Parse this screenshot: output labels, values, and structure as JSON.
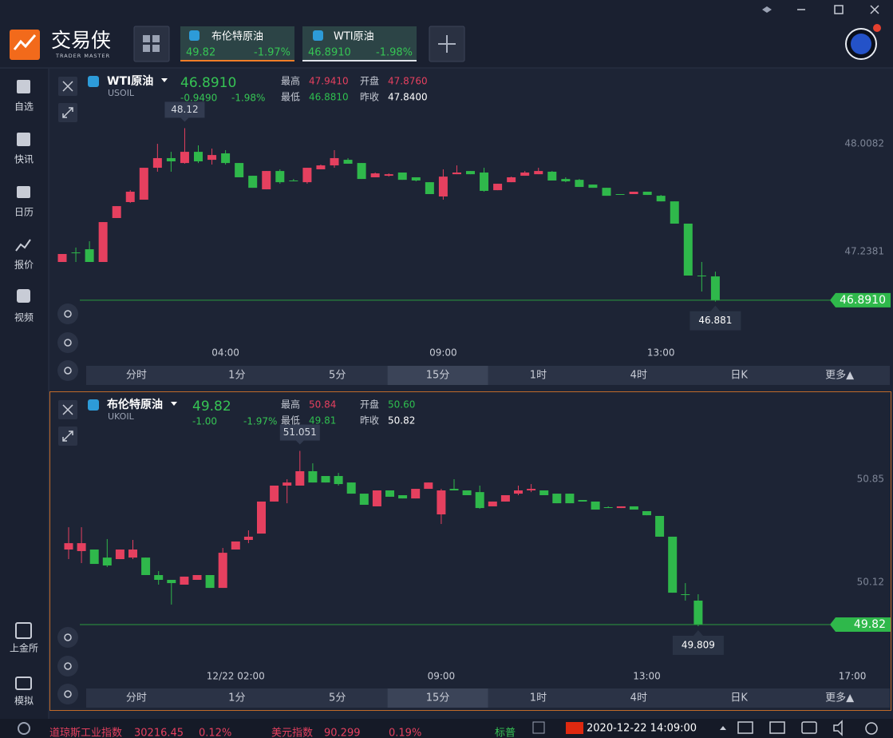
{
  "app": {
    "logo_text": "交易侠",
    "logo_sub": "TRADER MASTER"
  },
  "tabs": [
    {
      "name": "布伦特原油",
      "price": "49.82",
      "change": "-1.97%"
    },
    {
      "name": "WTI原油",
      "price": "46.8910",
      "change": "-1.98%"
    }
  ],
  "sidebar": [
    "自选",
    "快讯",
    "日历",
    "报价",
    "视频"
  ],
  "sidebar_bottom": [
    "上金所",
    "模拟"
  ],
  "timeframes": [
    "分时",
    "1分",
    "5分",
    "15分",
    "1时",
    "4时",
    "日K",
    "更多▲"
  ],
  "selected_timeframe_index": 3,
  "ticker": [
    {
      "name": "道琼斯工业指数",
      "value": "30216.45",
      "change": "0.12%"
    },
    {
      "name": "美元指数",
      "value": "90.299",
      "change": "0.19%"
    },
    {
      "name": "标普"
    }
  ],
  "clock": "2020-12-22 14:09:00",
  "chart_data": [
    {
      "type": "candlestick",
      "name": "WTI原油",
      "code": "USOIL",
      "price": "46.8910",
      "change": "-0.9490",
      "change_pct": "-1.98%",
      "stats": [
        {
          "label": "最高",
          "value": "47.9410",
          "color": "#e5405f"
        },
        {
          "label": "开盘",
          "value": "47.8760",
          "color": "#e5405f"
        },
        {
          "label": "最低",
          "value": "46.8810",
          "color": "#2fbf4f"
        },
        {
          "label": "昨收",
          "value": "47.8400",
          "color": "#ffffff"
        }
      ],
      "up_color": "#e5405f",
      "down_color": "#2fb84b",
      "categories": [
        null,
        null,
        null,
        null,
        null,
        null,
        null,
        null,
        null,
        null,
        null,
        null,
        "04:00",
        null,
        null,
        null,
        null,
        null,
        null,
        null,
        null,
        null,
        null,
        null,
        null,
        null,
        null,
        null,
        "09:00",
        null,
        null,
        null,
        null,
        null,
        null,
        null,
        null,
        null,
        null,
        null,
        null,
        null,
        null,
        null,
        "13:00",
        null,
        null,
        null,
        null
      ],
      "open": [
        47.164,
        47.232,
        47.255,
        47.164,
        47.478,
        47.592,
        47.609,
        47.837,
        47.906,
        47.871,
        47.951,
        47.894,
        47.94,
        47.871,
        47.78,
        47.683,
        47.814,
        47.746,
        47.734,
        47.826,
        47.854,
        47.894,
        47.871,
        47.769,
        47.78,
        47.803,
        47.769,
        47.734,
        47.632,
        47.791,
        47.814,
        47.803,
        47.677,
        47.734,
        47.78,
        47.791,
        47.809,
        47.757,
        47.751,
        47.717,
        47.694,
        47.649,
        47.649,
        47.666,
        47.637,
        47.597,
        47.438,
        47.067,
        47.061
      ],
      "high": [
        47.221,
        47.267,
        47.312,
        47.449,
        47.563,
        47.677,
        47.837,
        48.008,
        47.951,
        48.12,
        47.997,
        47.974,
        47.963,
        47.871,
        47.78,
        47.814,
        47.826,
        47.757,
        47.837,
        47.86,
        47.963,
        47.906,
        47.871,
        47.803,
        47.797,
        47.803,
        47.769,
        47.734,
        47.826,
        47.854,
        47.814,
        47.837,
        47.723,
        47.774,
        47.814,
        47.837,
        47.814,
        47.769,
        47.757,
        47.717,
        47.694,
        47.649,
        47.666,
        47.666,
        47.643,
        47.597,
        47.438,
        47.164,
        47.095
      ],
      "low": [
        47.164,
        47.164,
        47.164,
        47.164,
        47.478,
        47.586,
        47.609,
        47.809,
        47.809,
        47.866,
        47.871,
        47.86,
        47.86,
        47.769,
        47.694,
        47.683,
        47.723,
        47.74,
        47.723,
        47.826,
        47.837,
        47.866,
        47.757,
        47.769,
        47.774,
        47.751,
        47.74,
        47.649,
        47.609,
        47.791,
        47.791,
        47.666,
        47.677,
        47.734,
        47.78,
        47.791,
        47.746,
        47.734,
        47.7,
        47.694,
        47.637,
        47.643,
        47.649,
        47.643,
        47.597,
        47.438,
        47.067,
        46.953,
        46.881
      ],
      "close": [
        47.221,
        47.232,
        47.164,
        47.449,
        47.563,
        47.666,
        47.837,
        47.906,
        47.883,
        47.951,
        47.883,
        47.928,
        47.871,
        47.769,
        47.694,
        47.814,
        47.734,
        47.746,
        47.837,
        47.854,
        47.906,
        47.866,
        47.757,
        47.797,
        47.791,
        47.751,
        47.746,
        47.649,
        47.774,
        47.803,
        47.791,
        47.672,
        47.723,
        47.769,
        47.803,
        47.814,
        47.746,
        47.74,
        47.7,
        47.694,
        47.637,
        47.649,
        47.666,
        47.643,
        47.597,
        47.438,
        47.067,
        47.067,
        46.891
      ],
      "ylim": [
        46.582,
        48.465
      ],
      "yticks": [
        48.0082,
        47.2381
      ],
      "last": {
        "value": 46.891,
        "label": "46.8910"
      },
      "max_marker": 48.12,
      "min_marker": 46.881
    },
    {
      "type": "candlestick",
      "name": "布伦特原油",
      "code": "UKOIL",
      "price": "49.82",
      "change": "-1.00",
      "change_pct": "-1.97%",
      "stats": [
        {
          "label": "最高",
          "value": "50.84",
          "color": "#e5405f"
        },
        {
          "label": "开盘",
          "value": "50.60",
          "color": "#2fbf4f"
        },
        {
          "label": "最低",
          "value": "49.81",
          "color": "#2fbf4f"
        },
        {
          "label": "昨收",
          "value": "50.82",
          "color": "#ffffff"
        }
      ],
      "up_color": "#e5405f",
      "down_color": "#2fb84b",
      "categories": [
        null,
        null,
        null,
        null,
        null,
        null,
        null,
        null,
        null,
        null,
        null,
        null,
        null,
        "12/22 02:00",
        null,
        null,
        null,
        null,
        null,
        null,
        null,
        null,
        null,
        null,
        null,
        null,
        null,
        null,
        null,
        "09:00",
        null,
        null,
        null,
        null,
        null,
        null,
        null,
        null,
        null,
        null,
        null,
        null,
        null,
        null,
        null,
        "13:00",
        null,
        null,
        null,
        null,
        null,
        null,
        null,
        null,
        null,
        null,
        null,
        null,
        null,
        null,
        null,
        "17:00"
      ],
      "open": [
        50.352,
        50.341,
        50.352,
        50.295,
        50.284,
        50.295,
        50.295,
        50.171,
        50.137,
        50.103,
        50.137,
        50.171,
        50.08,
        50.352,
        50.42,
        50.465,
        50.692,
        50.805,
        50.805,
        50.907,
        50.873,
        50.873,
        50.827,
        50.748,
        50.658,
        50.771,
        50.737,
        50.714,
        50.782,
        50.601,
        50.782,
        50.771,
        50.759,
        50.658,
        50.692,
        50.748,
        50.771,
        50.771,
        50.748,
        50.748,
        50.703,
        50.692,
        50.652,
        50.646,
        50.658,
        50.624,
        50.59,
        50.443,
        50.035,
        49.99,
        null,
        null,
        null,
        null,
        null,
        null,
        null,
        null,
        null,
        null,
        null,
        null
      ],
      "high": [
        50.51,
        50.51,
        50.352,
        50.426,
        50.352,
        50.42,
        50.295,
        50.199,
        50.137,
        50.16,
        50.171,
        50.171,
        50.363,
        50.409,
        50.488,
        50.692,
        50.805,
        50.85,
        51.051,
        50.963,
        50.873,
        50.895,
        50.827,
        50.748,
        50.771,
        50.771,
        50.737,
        50.782,
        50.827,
        50.782,
        50.85,
        50.771,
        50.805,
        50.692,
        50.737,
        50.805,
        50.816,
        50.771,
        50.748,
        50.748,
        50.703,
        50.692,
        50.658,
        50.658,
        50.658,
        50.624,
        50.59,
        50.443,
        50.114,
        50.035,
        null,
        null,
        null,
        null,
        null,
        null,
        null,
        null,
        null,
        null,
        null,
        null
      ],
      "low": [
        50.284,
        50.256,
        50.25,
        50.228,
        50.284,
        50.284,
        50.171,
        50.103,
        49.962,
        50.103,
        50.137,
        50.08,
        50.08,
        50.352,
        50.397,
        50.465,
        50.692,
        50.68,
        50.805,
        50.827,
        50.827,
        50.805,
        50.748,
        50.669,
        50.658,
        50.726,
        50.714,
        50.714,
        50.782,
        50.533,
        50.771,
        50.737,
        50.641,
        50.658,
        50.692,
        50.737,
        50.759,
        50.737,
        50.68,
        50.68,
        50.692,
        50.635,
        50.646,
        50.646,
        50.635,
        50.595,
        50.443,
        50.046,
        49.99,
        49.809,
        null,
        null,
        null,
        null,
        null,
        null,
        null,
        null,
        null,
        null,
        null,
        null
      ],
      "close": [
        50.397,
        50.397,
        50.25,
        50.239,
        50.352,
        50.352,
        50.171,
        50.137,
        50.114,
        50.16,
        50.171,
        50.08,
        50.329,
        50.409,
        50.443,
        50.692,
        50.805,
        50.827,
        50.907,
        50.827,
        50.827,
        50.816,
        50.748,
        50.669,
        50.771,
        50.726,
        50.714,
        50.782,
        50.827,
        50.771,
        50.771,
        50.737,
        50.646,
        50.692,
        50.737,
        50.771,
        50.782,
        50.737,
        50.68,
        50.68,
        50.692,
        50.635,
        50.652,
        50.658,
        50.635,
        50.595,
        50.443,
        50.046,
        50.035,
        49.82,
        null,
        null,
        null,
        null,
        null,
        null,
        null,
        null,
        null,
        null,
        null,
        null
      ],
      "ylim": [
        49.52,
        51.388
      ],
      "yticks": [
        50.85,
        50.12
      ],
      "last": {
        "value": 49.82,
        "label": "49.82"
      },
      "max_marker": 51.051,
      "min_marker": 49.809
    }
  ]
}
